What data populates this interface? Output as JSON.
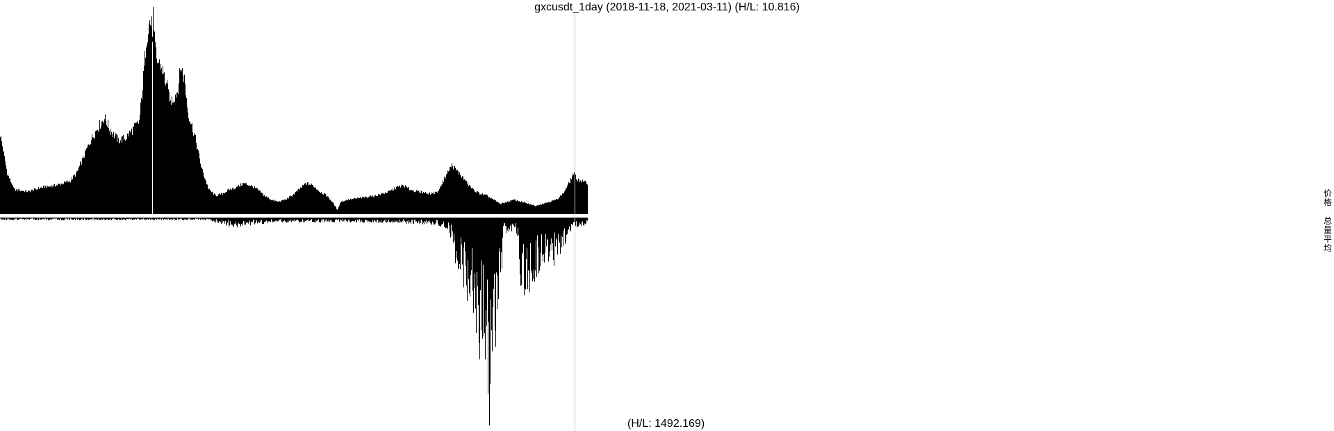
{
  "title": "gxcusdt_1day (2018-11-18, 2021-03-11) (H/L: 10.816)",
  "bottom_label": "(H/L: 1492.169)",
  "legend": {
    "price": "价格",
    "volume_avg": "总量平均"
  },
  "colors": {
    "fill": "#000000",
    "background": "#ffffff",
    "cursor_line": "#c8c8c8"
  },
  "chart_data": [
    {
      "type": "area",
      "title": "gxcusdt_1day (2018-11-18, 2021-03-11) (H/L: 10.816)",
      "series": [
        {
          "name": "价格"
        }
      ],
      "x_range": [
        "2018-11-18",
        "2021-03-11"
      ],
      "hl_ratio": 10.816,
      "approx_shape_relative_to_max": [
        [
          0,
          0.39
        ],
        [
          10,
          0.2
        ],
        [
          20,
          0.12
        ],
        [
          40,
          0.11
        ],
        [
          60,
          0.13
        ],
        [
          80,
          0.14
        ],
        [
          100,
          0.16
        ],
        [
          110,
          0.2
        ],
        [
          120,
          0.28
        ],
        [
          130,
          0.36
        ],
        [
          140,
          0.42
        ],
        [
          150,
          0.47
        ],
        [
          160,
          0.4
        ],
        [
          170,
          0.36
        ],
        [
          180,
          0.37
        ],
        [
          190,
          0.41
        ],
        [
          200,
          0.45
        ],
        [
          205,
          0.62
        ],
        [
          210,
          0.85
        ],
        [
          215,
          0.94
        ],
        [
          220,
          0.9
        ],
        [
          225,
          0.75
        ],
        [
          232,
          0.72
        ],
        [
          240,
          0.62
        ],
        [
          245,
          0.55
        ],
        [
          250,
          0.57
        ],
        [
          255,
          0.6
        ],
        [
          260,
          0.72
        ],
        [
          265,
          0.66
        ],
        [
          270,
          0.5
        ],
        [
          280,
          0.38
        ],
        [
          290,
          0.22
        ],
        [
          300,
          0.12
        ],
        [
          310,
          0.09
        ],
        [
          320,
          0.1
        ],
        [
          330,
          0.12
        ],
        [
          340,
          0.13
        ],
        [
          350,
          0.15
        ],
        [
          360,
          0.14
        ],
        [
          370,
          0.12
        ],
        [
          380,
          0.09
        ],
        [
          390,
          0.07
        ],
        [
          400,
          0.06
        ],
        [
          410,
          0.07
        ],
        [
          420,
          0.09
        ],
        [
          430,
          0.12
        ],
        [
          440,
          0.15
        ],
        [
          450,
          0.14
        ],
        [
          460,
          0.11
        ],
        [
          470,
          0.09
        ],
        [
          480,
          0.05
        ],
        [
          485,
          0.02
        ],
        [
          490,
          0.06
        ],
        [
          500,
          0.07
        ],
        [
          520,
          0.08
        ],
        [
          540,
          0.09
        ],
        [
          560,
          0.11
        ],
        [
          570,
          0.13
        ],
        [
          580,
          0.14
        ],
        [
          590,
          0.12
        ],
        [
          600,
          0.11
        ],
        [
          620,
          0.1
        ],
        [
          630,
          0.11
        ],
        [
          640,
          0.18
        ],
        [
          650,
          0.24
        ],
        [
          660,
          0.2
        ],
        [
          670,
          0.16
        ],
        [
          680,
          0.12
        ],
        [
          690,
          0.1
        ],
        [
          700,
          0.09
        ],
        [
          710,
          0.07
        ],
        [
          720,
          0.05
        ],
        [
          730,
          0.06
        ],
        [
          740,
          0.07
        ],
        [
          750,
          0.06
        ],
        [
          760,
          0.05
        ],
        [
          770,
          0.04
        ],
        [
          780,
          0.05
        ],
        [
          790,
          0.06
        ],
        [
          800,
          0.07
        ],
        [
          810,
          0.1
        ],
        [
          820,
          0.16
        ],
        [
          825,
          0.2
        ],
        [
          830,
          0.17
        ],
        [
          845,
          0.15
        ]
      ]
    },
    {
      "type": "bar",
      "series": [
        {
          "name": "总量平均"
        }
      ],
      "hl_ratio": 1492.169,
      "approx_shape_relative_to_max": [
        [
          0,
          0.01
        ],
        [
          100,
          0.01
        ],
        [
          200,
          0.01
        ],
        [
          300,
          0.01
        ],
        [
          320,
          0.03
        ],
        [
          340,
          0.04
        ],
        [
          360,
          0.03
        ],
        [
          400,
          0.02
        ],
        [
          500,
          0.02
        ],
        [
          560,
          0.02
        ],
        [
          630,
          0.03
        ],
        [
          645,
          0.05
        ],
        [
          650,
          0.1
        ],
        [
          655,
          0.22
        ],
        [
          660,
          0.2
        ],
        [
          665,
          0.3
        ],
        [
          670,
          0.27
        ],
        [
          675,
          0.4
        ],
        [
          680,
          0.42
        ],
        [
          685,
          0.45
        ],
        [
          690,
          0.6
        ],
        [
          695,
          0.5
        ],
        [
          700,
          0.64
        ],
        [
          703,
          0.99
        ],
        [
          706,
          0.7
        ],
        [
          710,
          0.56
        ],
        [
          715,
          0.5
        ],
        [
          720,
          0.38
        ],
        [
          725,
          0.05
        ],
        [
          730,
          0.08
        ],
        [
          735,
          0.06
        ],
        [
          740,
          0.04
        ],
        [
          745,
          0.1
        ],
        [
          750,
          0.32
        ],
        [
          755,
          0.38
        ],
        [
          760,
          0.33
        ],
        [
          765,
          0.3
        ],
        [
          770,
          0.24
        ],
        [
          780,
          0.22
        ],
        [
          790,
          0.2
        ],
        [
          800,
          0.18
        ],
        [
          810,
          0.12
        ],
        [
          820,
          0.06
        ],
        [
          830,
          0.04
        ],
        [
          845,
          0.03
        ]
      ]
    }
  ]
}
